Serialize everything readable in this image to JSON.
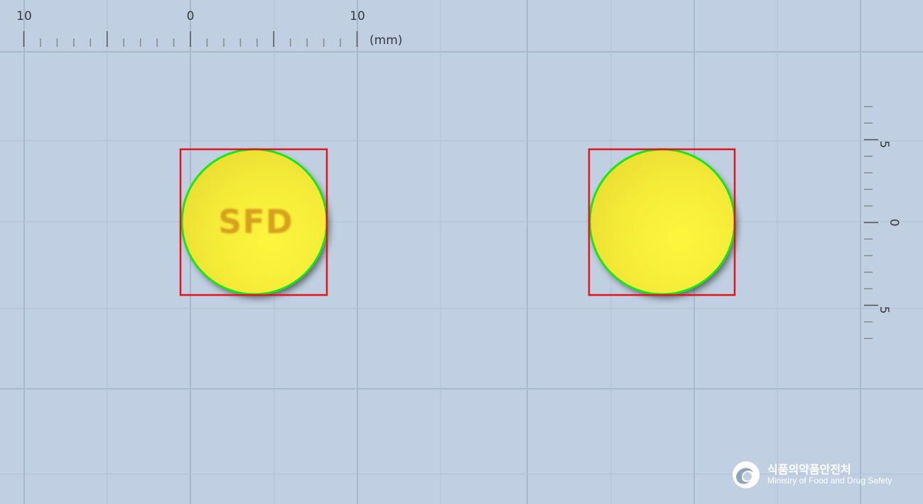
{
  "ruler_top": {
    "labels": [
      "10",
      "0",
      "10"
    ],
    "unit": "(mm)"
  },
  "ruler_right": {
    "labels": [
      "5",
      "0",
      "5"
    ]
  },
  "pills": [
    {
      "side": "front",
      "imprint": "SFD",
      "color": "#f7f13a",
      "shape": "round"
    },
    {
      "side": "back",
      "imprint": "",
      "color": "#f7f13a",
      "shape": "round"
    }
  ],
  "logo": {
    "korean": "식품의약품안전처",
    "english": "Ministry of Food and Drug Safety"
  },
  "colors": {
    "background": "#c0cfe1",
    "grid": "#a9b9cc",
    "bounding_box": "#e0161b",
    "contour": "#19e619"
  }
}
